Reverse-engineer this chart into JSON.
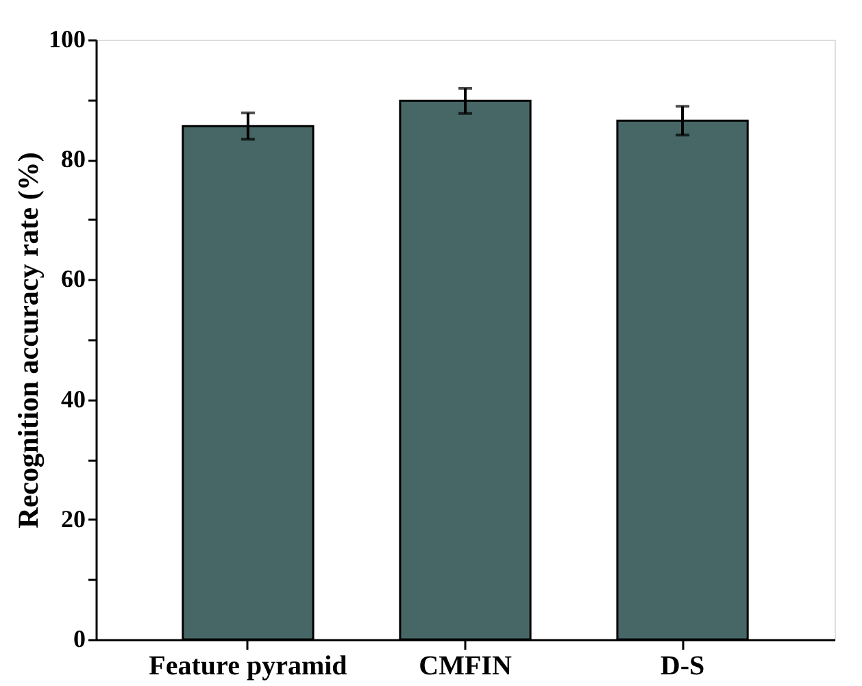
{
  "chart_data": {
    "type": "bar",
    "ylabel": "Recognition accuracy rate (%)",
    "categories": [
      "Feature pyramid",
      "CMFIN",
      "D-S"
    ],
    "values": [
      85.6,
      89.8,
      86.5
    ],
    "errors": [
      2.2,
      2.1,
      2.4
    ],
    "color": "#476766",
    "ylim": [
      0,
      100
    ],
    "yticks": [
      0,
      {
        "value": 10,
        "label": null
      },
      20,
      {
        "value": 30,
        "label": null
      },
      40,
      {
        "value": 50,
        "label": null
      },
      60,
      {
        "value": 70,
        "label": null
      },
      80,
      {
        "value": 90,
        "label": null
      },
      100
    ],
    "grid": false
  }
}
